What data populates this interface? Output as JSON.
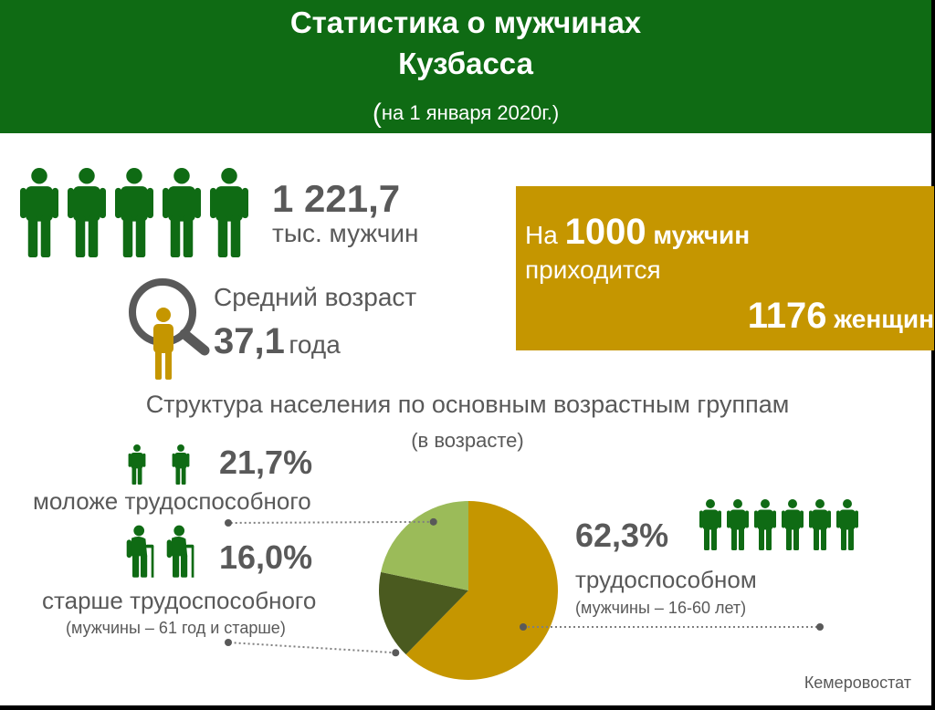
{
  "header": {
    "title_line1": "Статистика о мужчинах",
    "title_line2": "Кузбасса",
    "date_open": "(",
    "date_text": "на 1 января 2020г.)"
  },
  "icons": {
    "man": "man-icon",
    "magnifier": "magnifier-icon",
    "child": "child-icon",
    "elderly": "elderly-man-icon"
  },
  "colors": {
    "header_green": "#0f6b14",
    "icon_green": "#0f6b14",
    "gold": "#c59600",
    "olive": "#4a5a1f",
    "light_green": "#9bbb59",
    "text_gray": "#595959"
  },
  "stats": {
    "men_count": "1 221,7",
    "men_count_label": "тыс. мужчин",
    "avg_age_label": "Средний возраст",
    "avg_age_value": "37,1",
    "avg_age_unit": "года"
  },
  "ratio": {
    "prefix": "На ",
    "men_number": "1000",
    "men_word": " мужчин",
    "middle": "приходится",
    "women_number": "1176",
    "women_word": " женщин"
  },
  "structure": {
    "title": "Структура населения по основным возрастным группам",
    "subtitle": "(в возрасте)"
  },
  "chart_data": {
    "type": "pie",
    "title": "Структура населения по основным возрастным группам",
    "subtitle": "(в возрасте)",
    "slices": [
      {
        "label": "моложе трудоспособного",
        "value": 21.7,
        "value_label": "21,7%",
        "note": "",
        "color": "#9bbb59"
      },
      {
        "label": "старше трудоспособного",
        "value": 16.0,
        "value_label": "16,0%",
        "note": "(мужчины  – 61 год и старше)",
        "color": "#4a5a1f"
      },
      {
        "label": "трудоспособном",
        "value": 62.3,
        "value_label": "62,3%",
        "note": "(мужчины  – 16-60 лет)",
        "color": "#c59600"
      }
    ]
  },
  "source": "Кемеровостат"
}
